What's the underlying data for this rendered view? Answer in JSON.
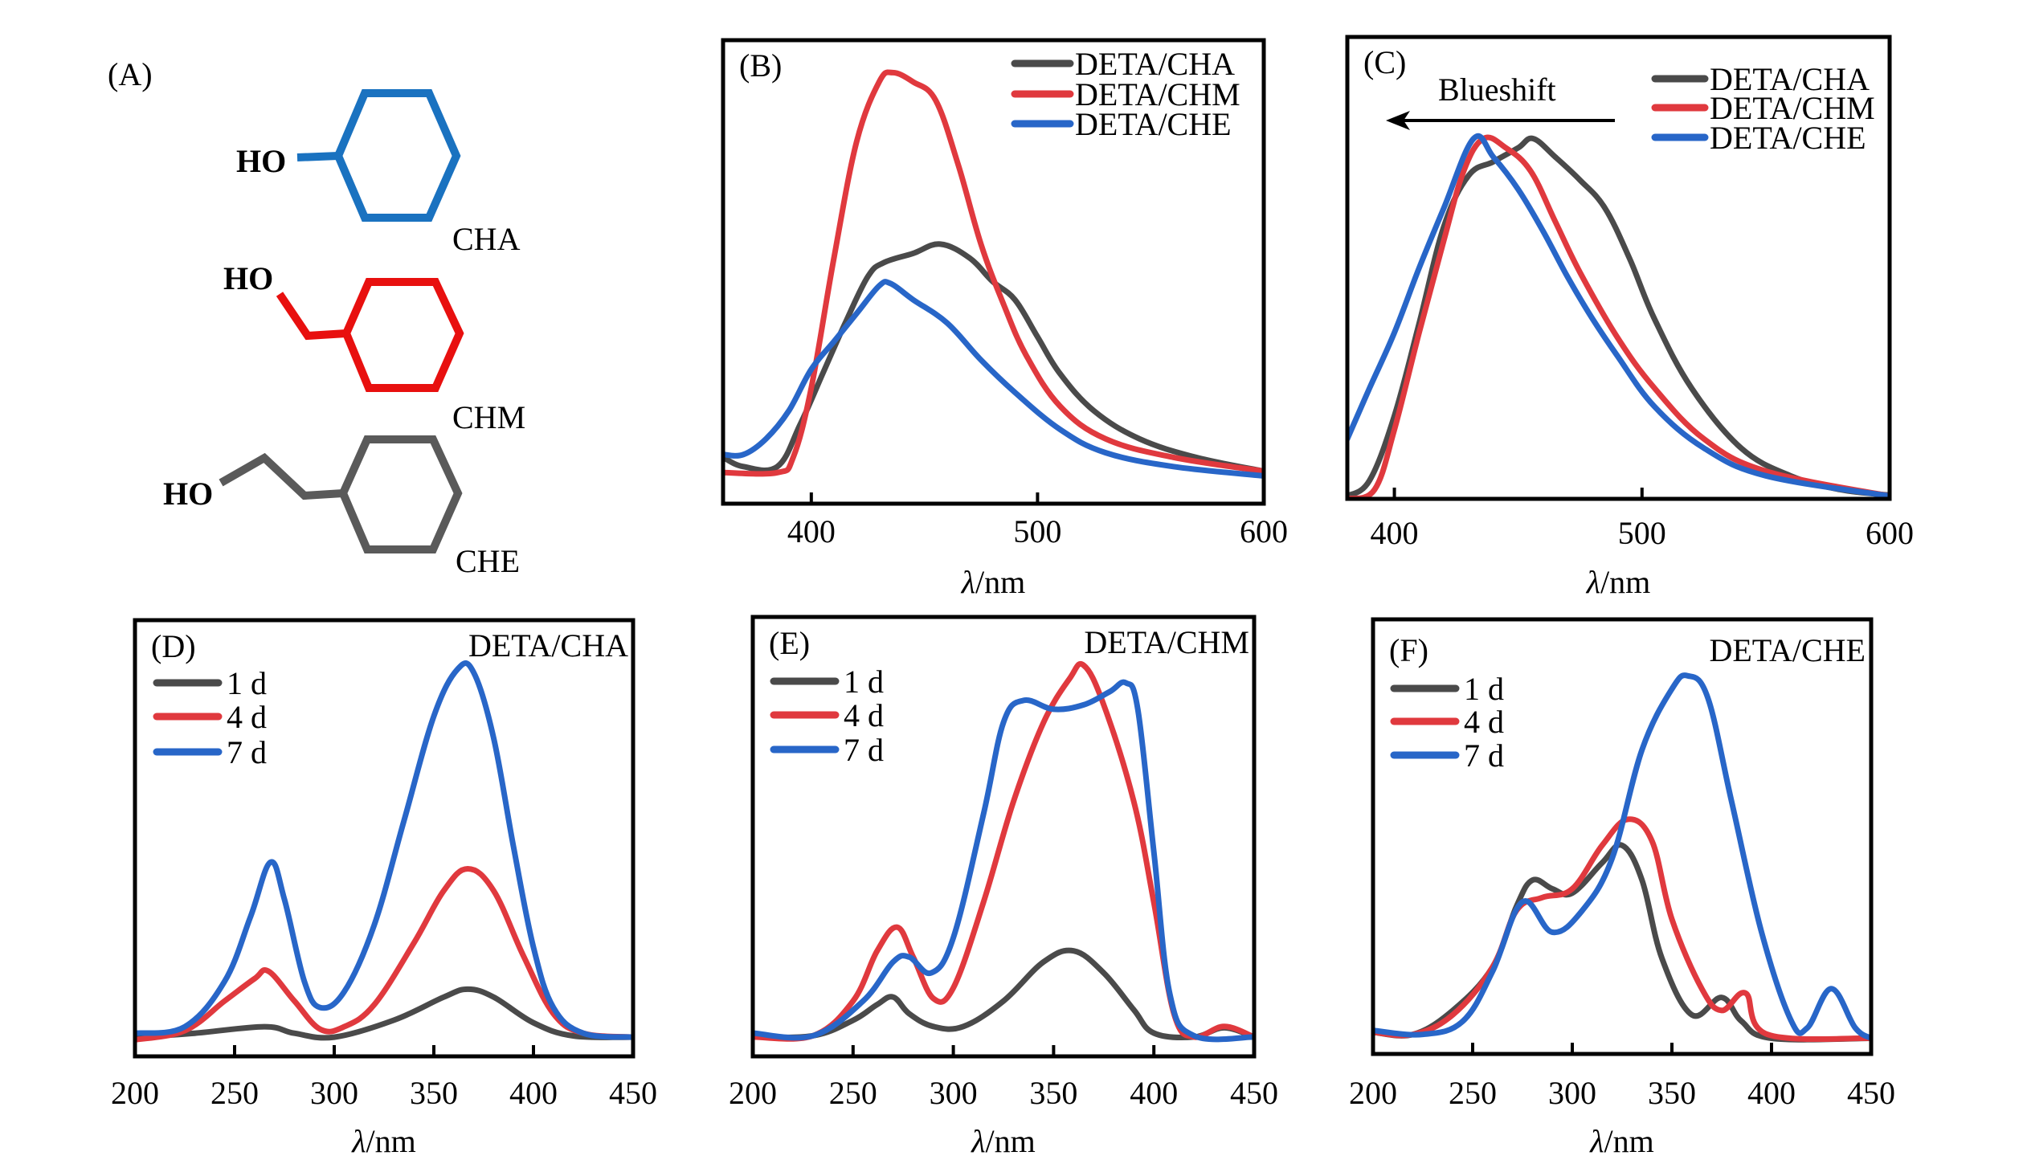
{
  "figure": {
    "panel_a": {
      "label": "(A)",
      "molecules": [
        {
          "name": "CHA",
          "group": "HO",
          "color": "#1a72c0"
        },
        {
          "name": "CHM",
          "group": "HO",
          "color": "#e8100f"
        },
        {
          "name": "CHE",
          "group": "HO",
          "color": "#5a5a5a"
        }
      ]
    },
    "annotation_c": "Blueshift"
  },
  "colors": {
    "cha": "#4a4a4a",
    "chm": "#e0393e",
    "che": "#2866c8",
    "d1": "#4a4a4a",
    "d4": "#e0393e",
    "d7": "#2866c8"
  },
  "chart_data": [
    {
      "id": "B",
      "type": "line",
      "panel_label": "(B)",
      "title": "",
      "xlabel_symbol": "λ",
      "xlabel_unit": "/nm",
      "ylabel": "",
      "xlim": [
        361,
        600
      ],
      "ylim": [
        0,
        1
      ],
      "xticks": [
        400,
        500,
        600
      ],
      "grid": false,
      "legend_position": "top-right",
      "series": [
        {
          "name": "DETA/CHA",
          "color_key": "cha",
          "x": [
            361,
            370,
            385,
            395,
            405,
            415,
            425,
            432,
            445,
            457,
            470,
            480,
            490,
            500,
            510,
            525,
            545,
            570,
            600
          ],
          "y": [
            0.1,
            0.08,
            0.08,
            0.17,
            0.28,
            0.39,
            0.49,
            0.52,
            0.54,
            0.56,
            0.53,
            0.48,
            0.44,
            0.36,
            0.28,
            0.2,
            0.14,
            0.1,
            0.07
          ]
        },
        {
          "name": "DETA/CHM",
          "color_key": "chm",
          "x": [
            361,
            385,
            392,
            400,
            410,
            420,
            430,
            436,
            445,
            455,
            465,
            475,
            485,
            495,
            510,
            530,
            560,
            600
          ],
          "y": [
            0.067,
            0.067,
            0.1,
            0.25,
            0.53,
            0.78,
            0.91,
            0.93,
            0.91,
            0.87,
            0.73,
            0.56,
            0.43,
            0.32,
            0.21,
            0.14,
            0.1,
            0.07
          ]
        },
        {
          "name": "DETA/CHE",
          "color_key": "che",
          "x": [
            361,
            370,
            380,
            390,
            400,
            410,
            420,
            430,
            435,
            445,
            460,
            475,
            490,
            510,
            530,
            560,
            600
          ],
          "y": [
            0.106,
            0.106,
            0.14,
            0.2,
            0.29,
            0.35,
            0.41,
            0.47,
            0.475,
            0.44,
            0.39,
            0.31,
            0.24,
            0.16,
            0.11,
            0.08,
            0.06
          ]
        }
      ]
    },
    {
      "id": "C",
      "type": "line",
      "panel_label": "(C)",
      "title": "",
      "xlabel_symbol": "λ",
      "xlabel_unit": "/nm",
      "ylabel": "",
      "xlim": [
        381,
        600
      ],
      "ylim": [
        0,
        1
      ],
      "xticks": [
        400,
        500,
        600
      ],
      "grid": false,
      "legend_position": "top-right",
      "annotation": "Blueshift (arrow pointing to shorter wavelength)",
      "series": [
        {
          "name": "DETA/CHA",
          "color_key": "cha",
          "x": [
            381,
            390,
            400,
            410,
            420,
            430,
            440,
            450,
            456,
            465,
            475,
            485,
            495,
            505,
            520,
            540,
            560,
            580,
            600
          ],
          "y": [
            0.006,
            0.04,
            0.18,
            0.38,
            0.59,
            0.7,
            0.73,
            0.76,
            0.78,
            0.74,
            0.69,
            0.63,
            0.52,
            0.39,
            0.24,
            0.11,
            0.05,
            0.02,
            0.008
          ]
        },
        {
          "name": "DETA/CHM",
          "color_key": "chm",
          "x": [
            381,
            392,
            400,
            410,
            420,
            428,
            436,
            445,
            455,
            465,
            475,
            490,
            505,
            525,
            550,
            600
          ],
          "y": [
            0.0,
            0.02,
            0.15,
            0.36,
            0.56,
            0.71,
            0.78,
            0.76,
            0.71,
            0.6,
            0.49,
            0.35,
            0.24,
            0.13,
            0.06,
            0.006
          ]
        },
        {
          "name": "DETA/CHE",
          "color_key": "che",
          "x": [
            381,
            390,
            400,
            410,
            420,
            432,
            440,
            450,
            460,
            470,
            480,
            490,
            505,
            525,
            550,
            600
          ],
          "y": [
            0.13,
            0.24,
            0.36,
            0.5,
            0.63,
            0.78,
            0.74,
            0.67,
            0.58,
            0.48,
            0.39,
            0.31,
            0.2,
            0.11,
            0.05,
            0.006
          ]
        }
      ]
    },
    {
      "id": "D",
      "type": "line",
      "panel_label": "(D)",
      "title": "DETA/CHA",
      "xlabel_symbol": "λ",
      "xlabel_unit": "/nm",
      "ylabel": "",
      "xlim": [
        200,
        450
      ],
      "ylim": [
        0,
        1
      ],
      "xticks": [
        200,
        250,
        300,
        350,
        400,
        450
      ],
      "grid": false,
      "legend_position": "top-left",
      "series": [
        {
          "name": "1 d",
          "color_key": "d1",
          "x": [
            200,
            230,
            265,
            280,
            300,
            330,
            355,
            367,
            380,
            400,
            420,
            450
          ],
          "y": [
            0.044,
            0.053,
            0.068,
            0.053,
            0.044,
            0.083,
            0.136,
            0.154,
            0.136,
            0.077,
            0.047,
            0.044
          ]
        },
        {
          "name": "4 d",
          "color_key": "d4",
          "x": [
            200,
            225,
            245,
            260,
            267,
            280,
            293,
            305,
            320,
            340,
            355,
            367,
            380,
            395,
            410,
            425,
            450
          ],
          "y": [
            0.038,
            0.059,
            0.127,
            0.178,
            0.195,
            0.127,
            0.062,
            0.068,
            0.118,
            0.26,
            0.38,
            0.43,
            0.38,
            0.23,
            0.098,
            0.053,
            0.044
          ]
        },
        {
          "name": "7 d",
          "color_key": "d7",
          "x": [
            200,
            225,
            245,
            258,
            268,
            275,
            285,
            293,
            305,
            320,
            335,
            350,
            362,
            370,
            380,
            390,
            400,
            410,
            425,
            450
          ],
          "y": [
            0.053,
            0.068,
            0.172,
            0.32,
            0.445,
            0.36,
            0.172,
            0.112,
            0.148,
            0.3,
            0.54,
            0.78,
            0.888,
            0.88,
            0.73,
            0.48,
            0.25,
            0.112,
            0.053,
            0.044
          ]
        }
      ]
    },
    {
      "id": "E",
      "type": "line",
      "panel_label": "(E)",
      "title": "DETA/CHM",
      "xlabel_symbol": "λ",
      "xlabel_unit": "/nm",
      "ylabel": "",
      "xlim": [
        200,
        450
      ],
      "ylim": [
        0,
        1
      ],
      "xticks": [
        200,
        250,
        300,
        350,
        400,
        450
      ],
      "grid": false,
      "legend_position": "top-left",
      "series": [
        {
          "name": "1 d",
          "color_key": "d1",
          "x": [
            200,
            230,
            250,
            262,
            270,
            278,
            290,
            305,
            325,
            345,
            360,
            375,
            390,
            400,
            420,
            435,
            450
          ],
          "y": [
            0.044,
            0.047,
            0.082,
            0.118,
            0.135,
            0.097,
            0.068,
            0.068,
            0.126,
            0.215,
            0.24,
            0.19,
            0.106,
            0.053,
            0.044,
            0.065,
            0.044
          ]
        },
        {
          "name": "4 d",
          "color_key": "d4",
          "x": [
            200,
            230,
            250,
            262,
            272,
            280,
            290,
            300,
            315,
            330,
            345,
            358,
            365,
            375,
            390,
            400,
            410,
            420,
            435,
            450
          ],
          "y": [
            0.044,
            0.047,
            0.126,
            0.24,
            0.294,
            0.226,
            0.132,
            0.156,
            0.35,
            0.58,
            0.76,
            0.86,
            0.89,
            0.8,
            0.58,
            0.35,
            0.097,
            0.044,
            0.068,
            0.044
          ]
        },
        {
          "name": "7 d",
          "color_key": "d7",
          "x": [
            200,
            230,
            255,
            270,
            278,
            289,
            300,
            315,
            325,
            335,
            350,
            365,
            378,
            386,
            392,
            400,
            408,
            420,
            450
          ],
          "y": [
            0.053,
            0.047,
            0.126,
            0.215,
            0.226,
            0.19,
            0.27,
            0.55,
            0.76,
            0.81,
            0.79,
            0.8,
            0.83,
            0.85,
            0.79,
            0.465,
            0.141,
            0.047,
            0.044
          ]
        }
      ]
    },
    {
      "id": "F",
      "type": "line",
      "panel_label": "(F)",
      "title": "DETA/CHE",
      "xlabel_symbol": "λ",
      "xlabel_unit": "/nm",
      "ylabel": "",
      "xlim": [
        200,
        450
      ],
      "ylim": [
        0,
        1
      ],
      "xticks": [
        200,
        250,
        300,
        350,
        400,
        450
      ],
      "grid": false,
      "legend_position": "top-left",
      "series": [
        {
          "name": "1 d",
          "color_key": "d1",
          "x": [
            200,
            220,
            240,
            260,
            272,
            280,
            290,
            300,
            315,
            325,
            335,
            345,
            360,
            375,
            385,
            400,
            450
          ],
          "y": [
            0.05,
            0.045,
            0.1,
            0.2,
            0.34,
            0.4,
            0.38,
            0.37,
            0.44,
            0.48,
            0.4,
            0.22,
            0.09,
            0.13,
            0.075,
            0.036,
            0.036
          ]
        },
        {
          "name": "4 d",
          "color_key": "d4",
          "x": [
            200,
            220,
            240,
            260,
            272,
            285,
            300,
            315,
            328,
            340,
            350,
            365,
            375,
            387,
            398,
            450
          ],
          "y": [
            0.05,
            0.045,
            0.09,
            0.2,
            0.33,
            0.36,
            0.38,
            0.48,
            0.54,
            0.49,
            0.31,
            0.15,
            0.1,
            0.14,
            0.045,
            0.036
          ]
        },
        {
          "name": "7 d",
          "color_key": "d7",
          "x": [
            200,
            225,
            245,
            260,
            275,
            290,
            305,
            320,
            335,
            350,
            358,
            368,
            380,
            395,
            410,
            418,
            430,
            442,
            450
          ],
          "y": [
            0.054,
            0.045,
            0.075,
            0.19,
            0.35,
            0.28,
            0.33,
            0.45,
            0.7,
            0.84,
            0.87,
            0.82,
            0.58,
            0.28,
            0.075,
            0.06,
            0.15,
            0.06,
            0.036
          ]
        }
      ]
    }
  ]
}
